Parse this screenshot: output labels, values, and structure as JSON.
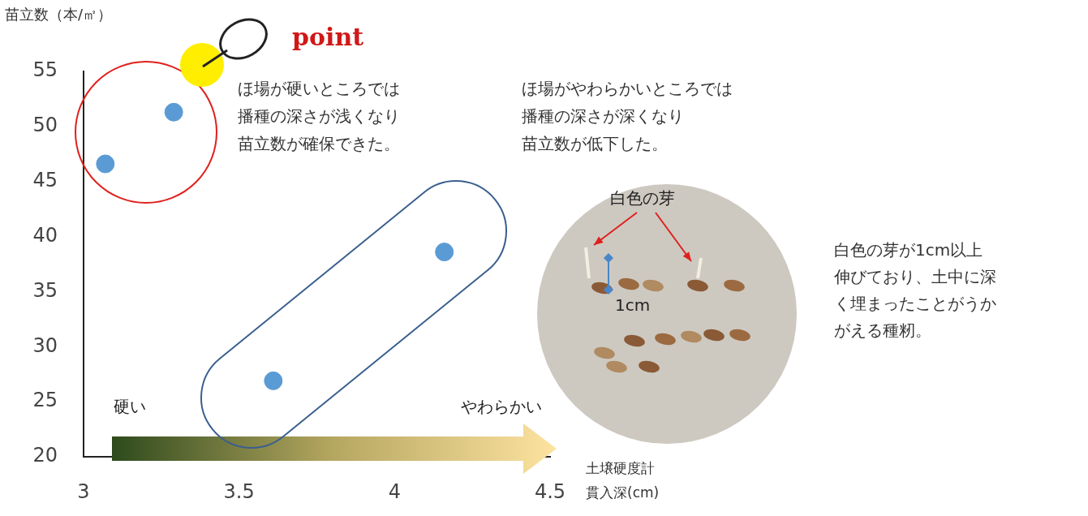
{
  "chart_data": {
    "type": "scatter",
    "y_label": "苗立数（本/㎡）",
    "x_label": "土壌硬度計\n貫入深(cm)",
    "x": [
      3.07,
      3.29,
      3.61,
      4.16
    ],
    "values": [
      46.6,
      51.3,
      26.9,
      38.6
    ],
    "color": "#5b9bd5",
    "marker": "circle",
    "xlim": [
      3,
      4.5
    ],
    "xticks": [
      3,
      3.5,
      4,
      4.5
    ],
    "ylim": [
      20,
      55
    ],
    "yticks": [
      20,
      25,
      30,
      35,
      40,
      45,
      50,
      55
    ],
    "grid": false,
    "annotations": {
      "point": "point",
      "hard_note": "ほ場が硬いところでは\n播種の深さが浅くなり\n苗立数が確保できた。",
      "soft_note": "ほ場がやわらかいところでは\n播種の深さが深くなり\n苗立数が低下した。",
      "arrow_start": "硬い",
      "arrow_end": "やわらかい",
      "photo_label": "白色の芽",
      "photo_scale": "1cm",
      "photo_caption": "白色の芽が1cm以上\n伸びており、土中に深\nく埋まったことがうか\nがえる種籾。"
    }
  }
}
